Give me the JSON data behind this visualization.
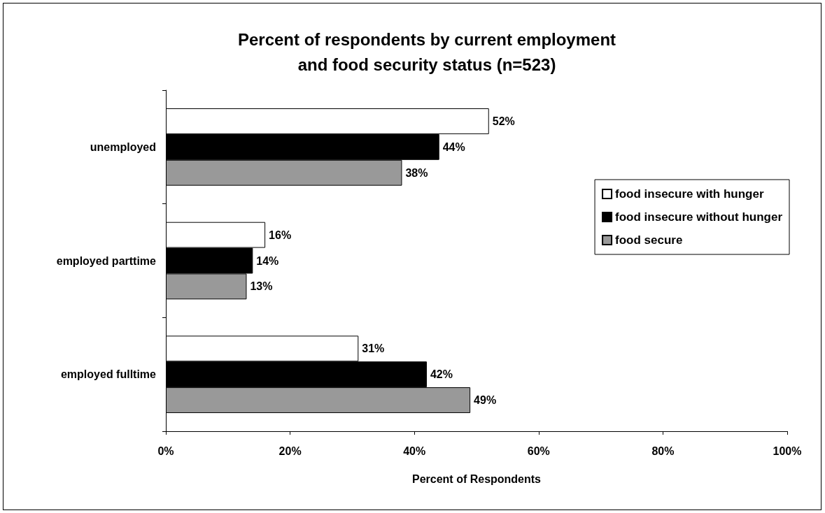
{
  "chart_data": {
    "type": "bar",
    "orientation": "horizontal",
    "title": "Percent of respondents by current employment\nand food security status (n=523)",
    "xlabel": "Percent of Respondents",
    "categories": [
      "unemployed",
      "employed parttime",
      "employed fulltime"
    ],
    "series": [
      {
        "name": "food insecure with hunger",
        "color": "#ffffff",
        "values": [
          52,
          16,
          31
        ],
        "value_labels": [
          "52%",
          "16%",
          "31%"
        ]
      },
      {
        "name": "food insecure without hunger",
        "color": "#000000",
        "values": [
          44,
          14,
          42
        ],
        "value_labels": [
          "44%",
          "14%",
          "42%"
        ]
      },
      {
        "name": "food secure",
        "color": "#999999",
        "values": [
          38,
          13,
          49
        ],
        "value_labels": [
          "38%",
          "13%",
          "49%"
        ]
      }
    ],
    "xlim": [
      0,
      100
    ],
    "xticks": [
      {
        "value": 0,
        "label": "0%"
      },
      {
        "value": 20,
        "label": "20%"
      },
      {
        "value": 40,
        "label": "40%"
      },
      {
        "value": 60,
        "label": "60%"
      },
      {
        "value": 80,
        "label": "80%"
      },
      {
        "value": 100,
        "label": "100%"
      }
    ],
    "grid": false,
    "legend": "right"
  }
}
